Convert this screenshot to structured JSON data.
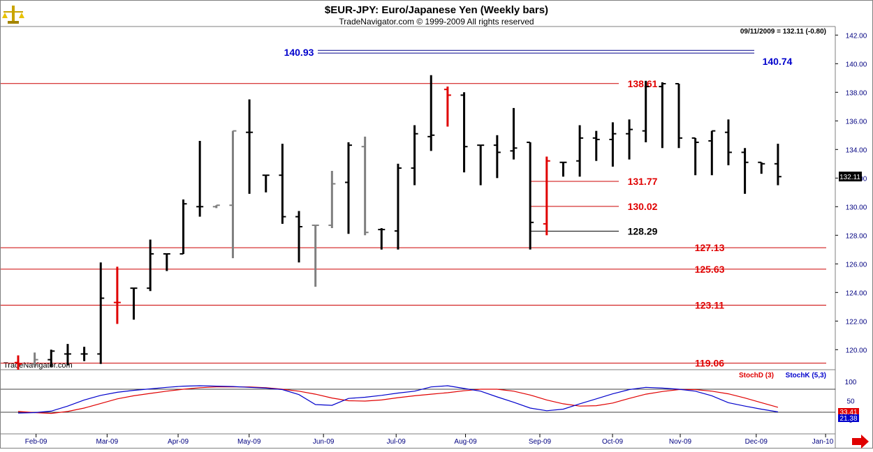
{
  "header": {
    "title": "$EUR-JPY:  Euro/Japanese Yen  (Weekly bars)",
    "subtitle": "TradeNavigator.com © 1999-2009 All rights reserved",
    "last_quote": "09/11/2009 = 132.11 (-0.80)",
    "watermark": "TradeNavigator.com",
    "logo_icon": "scales-logo-icon"
  },
  "colors": {
    "frame": "#7f7f7f",
    "up_bar": "#000000",
    "inside_bar": "#7f7f7f",
    "key_bar": "#e00000",
    "level_line": "#cc0000",
    "level_label": "#e00000",
    "target_line": "#00008b",
    "target_label": "#0000cc",
    "stoch_d": "#e00000",
    "stoch_k": "#0000cc",
    "axis_text": "#000080"
  },
  "chart_data": [
    {
      "type": "bar",
      "subtype": "ohlc",
      "title": "$EUR-JPY:  Euro/Japanese Yen  (Weekly bars)",
      "ylim": [
        118.6,
        142.6
      ],
      "y_ticks": [
        "120.00",
        "122.00",
        "124.00",
        "126.00",
        "128.00",
        "130.00",
        "132.00",
        "134.00",
        "136.00",
        "138.00",
        "140.00",
        "142.00"
      ],
      "y_tick_values": [
        120,
        122,
        124,
        126,
        128,
        130,
        132,
        134,
        136,
        138,
        140,
        142
      ],
      "last_price_label": "132.11",
      "last_price": 132.11,
      "x_labels": [
        "Feb-09",
        "Mar-09",
        "Apr-09",
        "May-09",
        "Jun-09",
        "Jul-09",
        "Aug-09",
        "Sep-09",
        "Oct-09",
        "Nov-09",
        "Dec-09",
        "Jan-10"
      ],
      "bars": [
        {
          "o": 119.1,
          "h": 119.6,
          "l": 118.6,
          "c": 119.0,
          "color": "red"
        },
        {
          "o": 119.0,
          "h": 119.8,
          "l": 118.8,
          "c": 119.3,
          "color": "gray"
        },
        {
          "o": 119.3,
          "h": 120.0,
          "l": 118.8,
          "c": 119.9,
          "color": "black"
        },
        {
          "o": 119.7,
          "h": 120.4,
          "l": 118.9,
          "c": 119.7,
          "color": "black"
        },
        {
          "o": 119.7,
          "h": 120.2,
          "l": 119.2,
          "c": 119.7,
          "color": "black"
        },
        {
          "o": 119.7,
          "h": 126.1,
          "l": 119.0,
          "c": 123.6,
          "color": "black"
        },
        {
          "o": 123.3,
          "h": 125.8,
          "l": 121.8,
          "c": 123.3,
          "color": "red"
        },
        {
          "o": 124.3,
          "h": 124.3,
          "l": 122.1,
          "c": 124.3,
          "color": "black"
        },
        {
          "o": 124.3,
          "h": 127.7,
          "l": 124.1,
          "c": 126.7,
          "color": "black"
        },
        {
          "o": 126.7,
          "h": 126.7,
          "l": 125.5,
          "c": 126.7,
          "color": "black"
        },
        {
          "o": 126.7,
          "h": 130.5,
          "l": 126.7,
          "c": 130.2,
          "color": "black"
        },
        {
          "o": 130.0,
          "h": 134.6,
          "l": 129.3,
          "c": 130.0,
          "color": "black"
        },
        {
          "o": 130.0,
          "h": 130.1,
          "l": 129.9,
          "c": 130.1,
          "color": "gray"
        },
        {
          "o": 130.1,
          "h": 135.3,
          "l": 126.4,
          "c": 135.3,
          "color": "gray"
        },
        {
          "o": 135.2,
          "h": 137.5,
          "l": 130.9,
          "c": 135.2,
          "color": "black"
        },
        {
          "o": 132.2,
          "h": 132.2,
          "l": 131.0,
          "c": 132.2,
          "color": "black"
        },
        {
          "o": 132.2,
          "h": 134.4,
          "l": 128.8,
          "c": 129.3,
          "color": "black"
        },
        {
          "o": 129.3,
          "h": 129.7,
          "l": 126.1,
          "c": 128.6,
          "color": "black"
        },
        {
          "o": 128.7,
          "h": 128.7,
          "l": 124.4,
          "c": 128.7,
          "color": "gray"
        },
        {
          "o": 128.7,
          "h": 132.5,
          "l": 128.5,
          "c": 131.6,
          "color": "gray"
        },
        {
          "o": 131.7,
          "h": 134.5,
          "l": 128.1,
          "c": 134.3,
          "color": "black"
        },
        {
          "o": 134.2,
          "h": 134.9,
          "l": 128.0,
          "c": 128.2,
          "color": "gray"
        },
        {
          "o": 128.4,
          "h": 128.5,
          "l": 127.0,
          "c": 128.4,
          "color": "black"
        },
        {
          "o": 128.3,
          "h": 133.0,
          "l": 127.0,
          "c": 132.7,
          "color": "black"
        },
        {
          "o": 132.7,
          "h": 135.7,
          "l": 131.5,
          "c": 135.1,
          "color": "black"
        },
        {
          "o": 134.9,
          "h": 139.2,
          "l": 133.9,
          "c": 135.0,
          "color": "black"
        },
        {
          "o": 138.2,
          "h": 138.4,
          "l": 135.6,
          "c": 137.8,
          "color": "red"
        },
        {
          "o": 137.8,
          "h": 138.0,
          "l": 132.4,
          "c": 134.2,
          "color": "black"
        },
        {
          "o": 134.3,
          "h": 134.3,
          "l": 131.5,
          "c": 134.3,
          "color": "black"
        },
        {
          "o": 134.3,
          "h": 135.0,
          "l": 132.0,
          "c": 133.8,
          "color": "black"
        },
        {
          "o": 133.9,
          "h": 136.9,
          "l": 133.3,
          "c": 134.1,
          "color": "black"
        },
        {
          "o": 134.5,
          "h": 134.5,
          "l": 127.0,
          "c": 128.9,
          "color": "black"
        },
        {
          "o": 128.8,
          "h": 133.5,
          "l": 128.0,
          "c": 133.2,
          "color": "red"
        },
        {
          "o": 133.1,
          "h": 133.1,
          "l": 132.1,
          "c": 133.1,
          "color": "black"
        },
        {
          "o": 133.2,
          "h": 135.7,
          "l": 132.1,
          "c": 134.8,
          "color": "black"
        },
        {
          "o": 134.8,
          "h": 135.3,
          "l": 133.2,
          "c": 134.7,
          "color": "black"
        },
        {
          "o": 134.7,
          "h": 135.9,
          "l": 132.8,
          "c": 135.1,
          "color": "black"
        },
        {
          "o": 135.1,
          "h": 136.1,
          "l": 133.3,
          "c": 135.4,
          "color": "black"
        },
        {
          "o": 135.3,
          "h": 138.8,
          "l": 134.5,
          "c": 138.4,
          "color": "black"
        },
        {
          "o": 138.4,
          "h": 138.7,
          "l": 134.1,
          "c": 138.6,
          "color": "black"
        },
        {
          "o": 138.6,
          "h": 138.6,
          "l": 134.1,
          "c": 134.8,
          "color": "black"
        },
        {
          "o": 134.8,
          "h": 134.8,
          "l": 132.2,
          "c": 134.5,
          "color": "black"
        },
        {
          "o": 134.6,
          "h": 135.3,
          "l": 132.2,
          "c": 135.3,
          "color": "black"
        },
        {
          "o": 135.2,
          "h": 136.1,
          "l": 132.9,
          "c": 133.8,
          "color": "black"
        },
        {
          "o": 133.8,
          "h": 134.1,
          "l": 130.9,
          "c": 133.1,
          "color": "black"
        },
        {
          "o": 133.1,
          "h": 133.1,
          "l": 132.3,
          "c": 133.0,
          "color": "black"
        },
        {
          "o": 133.0,
          "h": 134.4,
          "l": 131.5,
          "c": 132.1,
          "color": "black"
        }
      ],
      "levels": [
        {
          "value": 138.61,
          "label": "138.61",
          "color": "red",
          "start_bar": 0
        },
        {
          "value": 131.77,
          "label": "131.77",
          "color": "red",
          "start_bar": 31
        },
        {
          "value": 130.02,
          "label": "130.02",
          "color": "red",
          "start_bar": 31
        },
        {
          "value": 128.29,
          "label": "128.29",
          "color": "black",
          "start_bar": 31
        },
        {
          "value": 127.13,
          "label": "127.13",
          "color": "red",
          "start_bar": 0
        },
        {
          "value": 125.63,
          "label": "125.63",
          "color": "red",
          "start_bar": 0
        },
        {
          "value": 123.11,
          "label": "123.11",
          "color": "red",
          "start_bar": 0
        },
        {
          "value": 119.06,
          "label": "119.06",
          "color": "red",
          "start_bar": 0
        }
      ],
      "targets": [
        {
          "value": 140.93,
          "label": "140.93"
        },
        {
          "value": 140.74,
          "label": "140.74"
        }
      ]
    },
    {
      "type": "line",
      "title": "StochD (3)  StochK (5,3)",
      "ylim": [
        0,
        110
      ],
      "y_ticks": [
        "100",
        "50",
        "0"
      ],
      "y_tick_values": [
        100,
        50,
        0
      ],
      "reference_lines": [
        80,
        20
      ],
      "last_values": [
        "33.41",
        "21.38"
      ],
      "series": [
        {
          "name": "StochD (3)",
          "color": "red",
          "values": [
            22,
            19,
            17,
            22,
            31,
            43,
            55,
            63,
            69,
            75,
            80,
            84,
            86,
            86,
            86,
            84,
            80,
            75,
            67,
            57,
            50,
            49,
            52,
            58,
            63,
            67,
            71,
            76,
            80,
            80,
            75,
            65,
            52,
            42,
            36,
            37,
            44,
            56,
            67,
            74,
            79,
            79,
            75,
            68,
            57,
            45,
            33
          ]
        },
        {
          "name": "StochK (5,3)",
          "color": "blue",
          "values": [
            18,
            19,
            23,
            36,
            52,
            64,
            72,
            77,
            81,
            85,
            88,
            89,
            88,
            87,
            85,
            83,
            79,
            66,
            40,
            38,
            56,
            59,
            64,
            70,
            75,
            86,
            89,
            82,
            75,
            60,
            46,
            31,
            24,
            28,
            42,
            55,
            68,
            79,
            85,
            83,
            80,
            75,
            63,
            45,
            36,
            28,
            21
          ]
        }
      ]
    }
  ]
}
